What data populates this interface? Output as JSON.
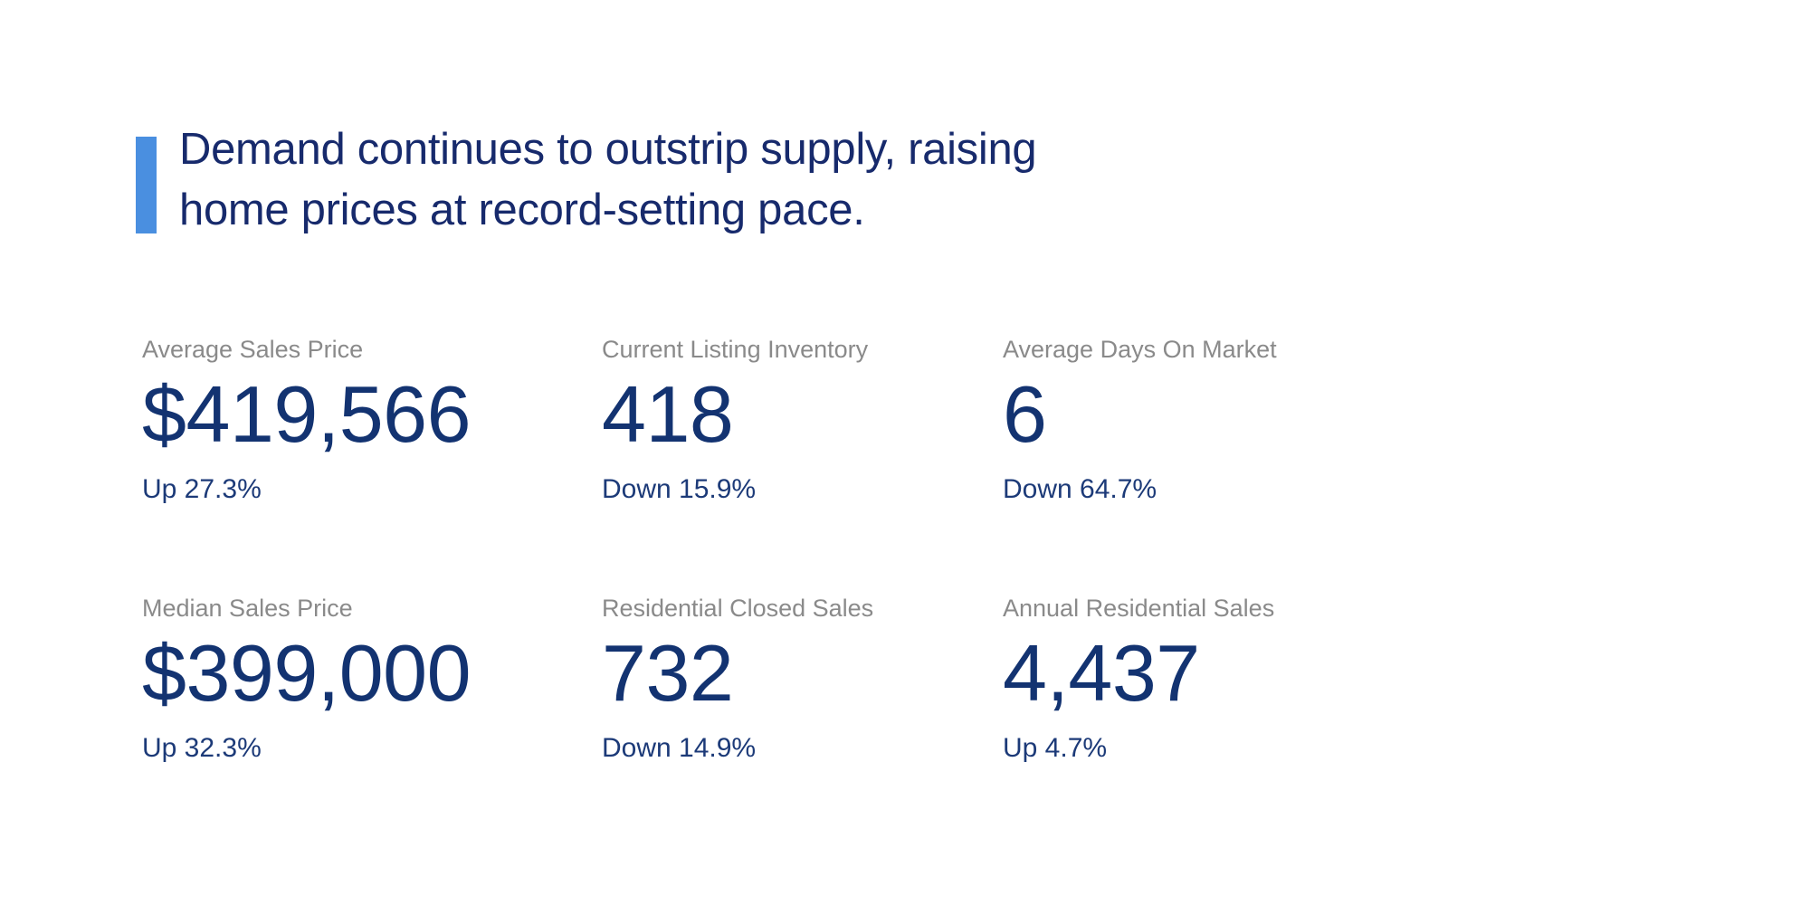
{
  "colors": {
    "background": "#ffffff",
    "accent_bar": "#4a8fe0",
    "headline_text": "#172a6c",
    "stat_label": "#8a8a8a",
    "stat_value": "#133371",
    "stat_change": "#1c3a78"
  },
  "headline": {
    "text": "Demand continues to outstrip supply, raising\nhome prices at record-setting pace."
  },
  "stats": {
    "cards": [
      {
        "label": "Average Sales Price",
        "value": "$419,566",
        "change": "Up 27.3%",
        "direction": "up"
      },
      {
        "label": "Current Listing Inventory",
        "value": "418",
        "change": "Down 15.9%",
        "direction": "down"
      },
      {
        "label": "Average Days On Market",
        "value": "6",
        "change": "Down 64.7%",
        "direction": "down"
      },
      {
        "label": "Median Sales Price",
        "value": "$399,000",
        "change": "Up 32.3%",
        "direction": "up"
      },
      {
        "label": "Residential Closed Sales",
        "value": "732",
        "change": "Down 14.9%",
        "direction": "down"
      },
      {
        "label": "Annual Residential Sales",
        "value": "4,437",
        "change": "Up 4.7%",
        "direction": "up"
      }
    ]
  }
}
